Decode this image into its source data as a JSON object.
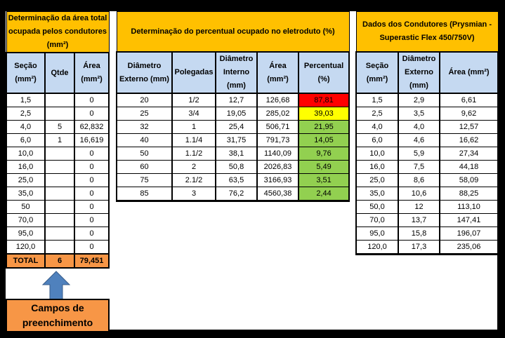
{
  "left_table": {
    "title": "Determinação da área total ocupada pelos condutores (mm²)",
    "headers": [
      "Seção (mm²)",
      "Qtde",
      "Área (mm²)"
    ],
    "rows": [
      {
        "secao": "1,5",
        "qtde": "",
        "area": "0"
      },
      {
        "secao": "2,5",
        "qtde": "",
        "area": "0"
      },
      {
        "secao": "4,0",
        "qtde": "5",
        "area": "62,832"
      },
      {
        "secao": "6,0",
        "qtde": "1",
        "area": "16,619"
      },
      {
        "secao": "10,0",
        "qtde": "",
        "area": "0"
      },
      {
        "secao": "16,0",
        "qtde": "",
        "area": "0"
      },
      {
        "secao": "25,0",
        "qtde": "",
        "area": "0"
      },
      {
        "secao": "35,0",
        "qtde": "",
        "area": "0"
      },
      {
        "secao": "50",
        "qtde": "",
        "area": "0"
      },
      {
        "secao": "70,0",
        "qtde": "",
        "area": "0"
      },
      {
        "secao": "95,0",
        "qtde": "",
        "area": "0"
      },
      {
        "secao": "120,0",
        "qtde": "",
        "area": "0"
      }
    ],
    "total": {
      "label": "TOTAL",
      "qtde": "6",
      "area": "79,451"
    }
  },
  "fill_note": {
    "icon": "arrow-up-icon",
    "line1": "Campos de",
    "line2": "preenchimento",
    "arrow_color": "#4f81bd",
    "box_color": "#f79646"
  },
  "mid_table": {
    "title": "Determinação do percentual ocupado no eletroduto (%)",
    "headers": [
      "Diâmetro Externo (mm)",
      "Polegadas",
      "Diâmetro Interno (mm)",
      "Área (mm²)",
      "Percentual (%)"
    ],
    "rows": [
      {
        "ext": "20",
        "pol": "1/2",
        "int": "12,7",
        "area": "126,68",
        "pct": "87,81",
        "status": "red"
      },
      {
        "ext": "25",
        "pol": "3/4",
        "int": "19,05",
        "area": "285,02",
        "pct": "39,03",
        "status": "yellow"
      },
      {
        "ext": "32",
        "pol": "1",
        "int": "25,4",
        "area": "506,71",
        "pct": "21,95",
        "status": "green"
      },
      {
        "ext": "40",
        "pol": "1.1/4",
        "int": "31,75",
        "area": "791,73",
        "pct": "14,05",
        "status": "green"
      },
      {
        "ext": "50",
        "pol": "1.1/2",
        "int": "38,1",
        "area": "1140,09",
        "pct": "9,76",
        "status": "green"
      },
      {
        "ext": "60",
        "pol": "2",
        "int": "50,8",
        "area": "2026,83",
        "pct": "5,49",
        "status": "green"
      },
      {
        "ext": "75",
        "pol": "2.1/2",
        "int": "63,5",
        "area": "3166,93",
        "pct": "3,51",
        "status": "green"
      },
      {
        "ext": "85",
        "pol": "3",
        "int": "76,2",
        "area": "4560,38",
        "pct": "2,44",
        "status": "green"
      }
    ],
    "status_colors": {
      "red": "#ff0000",
      "yellow": "#ffff00",
      "green": "#92d050"
    }
  },
  "right_table": {
    "title": "Dados dos Condutores (Prysmian - Superastic Flex 450/750V)",
    "headers": [
      "Seção (mm²)",
      "Diâmetro Externo (mm)",
      "Área (mm²)"
    ],
    "rows": [
      {
        "secao": "1,5",
        "diam": "2,9",
        "area": "6,61"
      },
      {
        "secao": "2,5",
        "diam": "3,5",
        "area": "9,62"
      },
      {
        "secao": "4,0",
        "diam": "4,0",
        "area": "12,57"
      },
      {
        "secao": "6,0",
        "diam": "4,6",
        "area": "16,62"
      },
      {
        "secao": "10,0",
        "diam": "5,9",
        "area": "27,34"
      },
      {
        "secao": "16,0",
        "diam": "7,5",
        "area": "44,18"
      },
      {
        "secao": "25,0",
        "diam": "8,6",
        "area": "58,09"
      },
      {
        "secao": "35,0",
        "diam": "10,6",
        "area": "88,25"
      },
      {
        "secao": "50,0",
        "diam": "12",
        "area": "113,10"
      },
      {
        "secao": "70,0",
        "diam": "13,7",
        "area": "147,41"
      },
      {
        "secao": "95,0",
        "diam": "15,8",
        "area": "196,07"
      },
      {
        "secao": "120,0",
        "diam": "17,3",
        "area": "235,06"
      }
    ]
  },
  "colors": {
    "title_bg": "#ffc000",
    "header_bg": "#c5d9f1",
    "total_bg": "#f79646"
  }
}
